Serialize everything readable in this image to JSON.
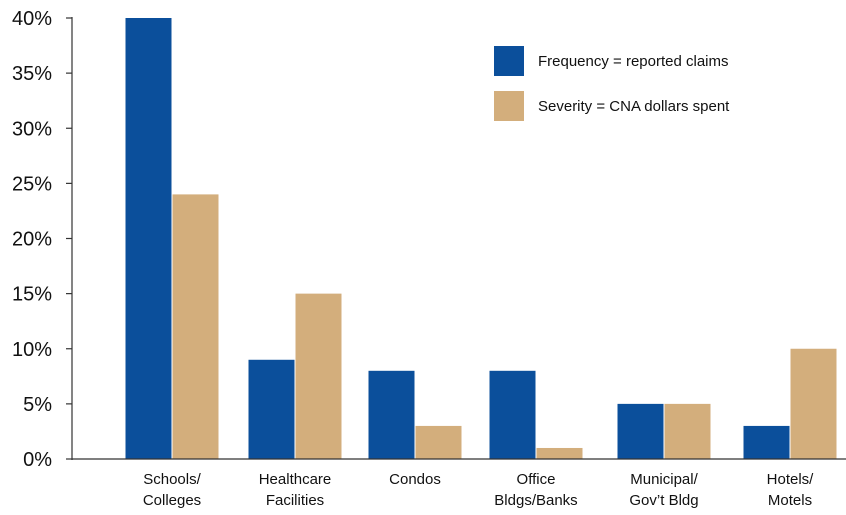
{
  "chart_data": {
    "type": "bar",
    "title": "",
    "xlabel": "",
    "ylabel": "",
    "ylim": [
      0,
      40
    ],
    "yticks": [
      "0%",
      "5%",
      "10%",
      "15%",
      "20%",
      "25%",
      "30%",
      "35%",
      "40%"
    ],
    "categories": [
      [
        "Schools/",
        "Colleges"
      ],
      [
        "Healthcare",
        "Facilities"
      ],
      [
        "Condos"
      ],
      [
        "Office",
        "Bldgs/Banks"
      ],
      [
        "Municipal/",
        "Gov’t Bldg"
      ],
      [
        "Hotels/",
        "Motels"
      ]
    ],
    "series": [
      {
        "name": "Frequency = reported claims",
        "color": "#0b4f9b",
        "values": [
          40,
          9,
          8,
          8,
          5,
          3
        ]
      },
      {
        "name": "Severity = CNA dollars spent",
        "color": "#d3ae7c",
        "values": [
          24,
          15,
          3,
          1,
          5,
          10
        ]
      }
    ],
    "grid": false,
    "legend_position": "top-right"
  }
}
